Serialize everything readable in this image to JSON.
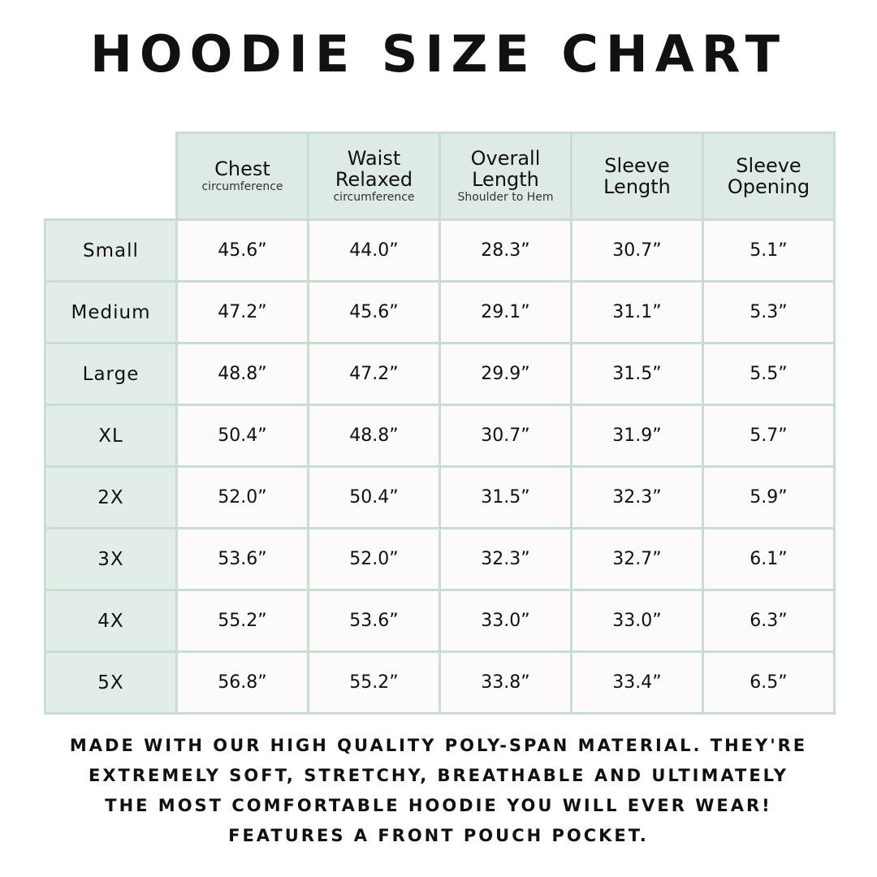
{
  "title": "HOODIE SIZE CHART",
  "table": {
    "headers": [
      {
        "label": "Chest",
        "sub": "circumference"
      },
      {
        "label": "Waist Relaxed",
        "sub": "circumference"
      },
      {
        "label": "Overall Length",
        "sub": "Shoulder to Hem"
      },
      {
        "label": "Sleeve Length",
        "sub": ""
      },
      {
        "label": "Sleeve Opening",
        "sub": ""
      }
    ],
    "rows": [
      {
        "size": "Small",
        "values": [
          "45.6”",
          "44.0”",
          "28.3”",
          "30.7”",
          "5.1”"
        ]
      },
      {
        "size": "Medium",
        "values": [
          "47.2”",
          "45.6”",
          "29.1”",
          "31.1”",
          "5.3”"
        ]
      },
      {
        "size": "Large",
        "values": [
          "48.8”",
          "47.2”",
          "29.9”",
          "31.5”",
          "5.5”"
        ]
      },
      {
        "size": "XL",
        "values": [
          "50.4”",
          "48.8”",
          "30.7”",
          "31.9”",
          "5.7”"
        ]
      },
      {
        "size": "2X",
        "values": [
          "52.0”",
          "50.4”",
          "31.5”",
          "32.3”",
          "5.9”"
        ]
      },
      {
        "size": "3X",
        "values": [
          "53.6”",
          "52.0”",
          "32.3”",
          "32.7”",
          "6.1”"
        ]
      },
      {
        "size": "4X",
        "values": [
          "55.2”",
          "53.6”",
          "33.0”",
          "33.0”",
          "6.3”"
        ]
      },
      {
        "size": "5X",
        "values": [
          "56.8”",
          "55.2”",
          "33.8”",
          "33.4”",
          "6.5”"
        ]
      }
    ]
  },
  "footer": [
    "MADE WITH OUR HIGH QUALITY POLY-SPAN MATERIAL. THEY'RE",
    "EXTREMELY SOFT, STRETCHY, BREATHABLE AND ULTIMATELY",
    "THE MOST COMFORTABLE HOODIE YOU WILL EVER WEAR!",
    "FEATURES A FRONT POUCH POCKET."
  ],
  "colors": {
    "header_bg": "#deebe5",
    "border": "#c9ddd3",
    "label_bg": "#e3ede8"
  }
}
